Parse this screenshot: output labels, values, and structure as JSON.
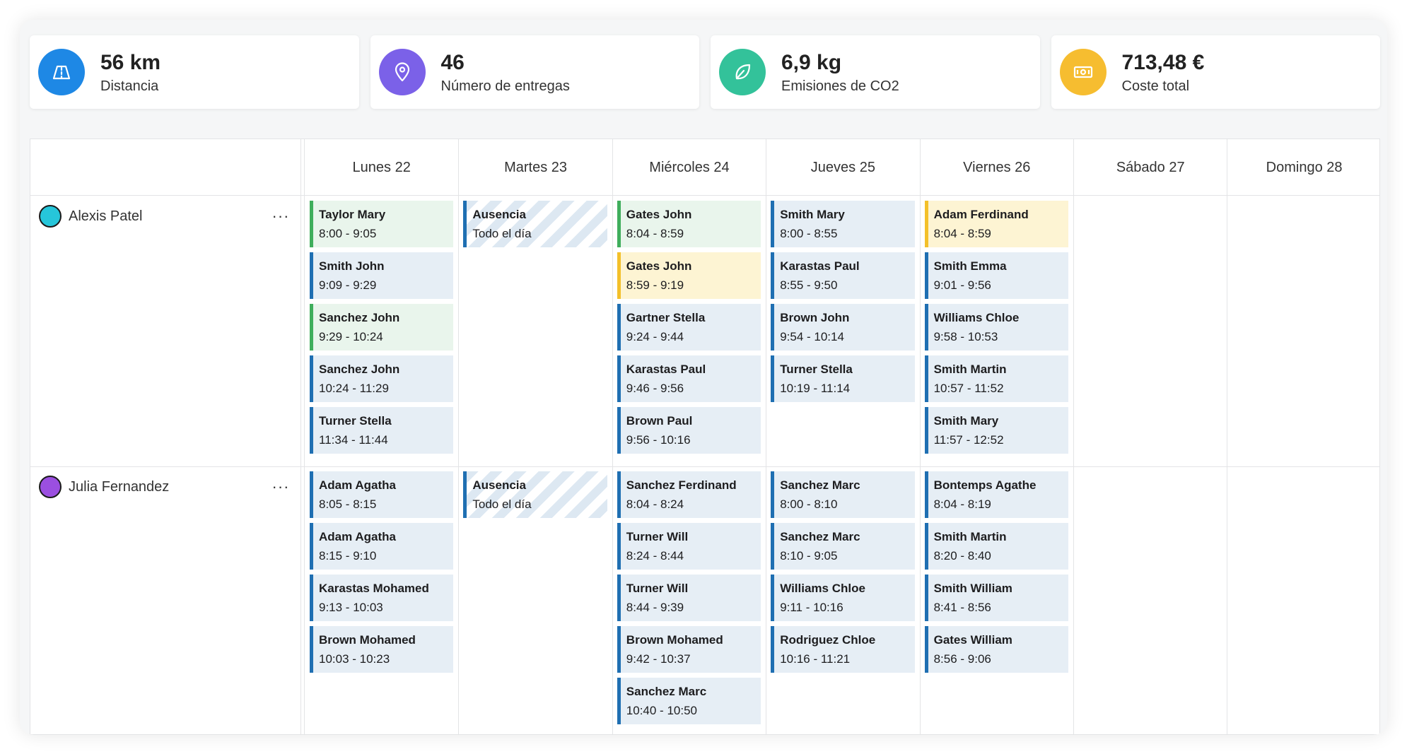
{
  "kpis": [
    {
      "value": "56 km",
      "label": "Distancia",
      "icon": "road-icon",
      "color": "#1e88e5"
    },
    {
      "value": "46",
      "label": "Número de entregas",
      "icon": "location-pin-icon",
      "color": "#7b61e8"
    },
    {
      "value": "6,9 kg",
      "label": "Emisiones de CO2",
      "icon": "leaf-icon",
      "color": "#33c29a"
    },
    {
      "value": "713,48 €",
      "label": "Coste total",
      "icon": "banknote-icon",
      "color": "#f6bd30"
    }
  ],
  "days": [
    "Lunes 22",
    "Martes 23",
    "Miércoles 24",
    "Jueves 25",
    "Viernes 26",
    "Sábado 27",
    "Domingo 28"
  ],
  "colors": {
    "blue": "#1f6fb2",
    "green": "#3fae5c",
    "yellow": "#f3c02a"
  },
  "people": [
    {
      "name": "Alexis Patel",
      "avatar_color": "#26c6da",
      "more": "···",
      "days": [
        [
          {
            "name": "Taylor Mary",
            "time": "8:00 - 9:05",
            "type": "green"
          },
          {
            "name": "Smith John",
            "time": "9:09 - 9:29",
            "type": "blue"
          },
          {
            "name": "Sanchez John",
            "time": "9:29 - 10:24",
            "type": "green"
          },
          {
            "name": "Sanchez John",
            "time": "10:24 - 11:29",
            "type": "blue"
          },
          {
            "name": "Turner Stella",
            "time": "11:34 - 11:44",
            "type": "blue"
          }
        ],
        [
          {
            "name": "Ausencia",
            "time": "Todo el día",
            "type": "absence"
          }
        ],
        [
          {
            "name": "Gates John",
            "time": "8:04 - 8:59",
            "type": "green"
          },
          {
            "name": "Gates John",
            "time": "8:59 - 9:19",
            "type": "yellow"
          },
          {
            "name": "Gartner Stella",
            "time": "9:24 - 9:44",
            "type": "blue"
          },
          {
            "name": "Karastas Paul",
            "time": "9:46 - 9:56",
            "type": "blue"
          },
          {
            "name": "Brown Paul",
            "time": "9:56 - 10:16",
            "type": "blue"
          }
        ],
        [
          {
            "name": "Smith Mary",
            "time": "8:00 - 8:55",
            "type": "blue"
          },
          {
            "name": "Karastas Paul",
            "time": "8:55 - 9:50",
            "type": "blue"
          },
          {
            "name": "Brown John",
            "time": "9:54 - 10:14",
            "type": "blue"
          },
          {
            "name": "Turner Stella",
            "time": "10:19 - 11:14",
            "type": "blue"
          }
        ],
        [
          {
            "name": "Adam Ferdinand",
            "time": "8:04 - 8:59",
            "type": "yellow"
          },
          {
            "name": "Smith Emma",
            "time": "9:01 - 9:56",
            "type": "blue"
          },
          {
            "name": "Williams Chloe",
            "time": "9:58 - 10:53",
            "type": "blue"
          },
          {
            "name": "Smith Martin",
            "time": "10:57 - 11:52",
            "type": "blue"
          },
          {
            "name": "Smith Mary",
            "time": "11:57 - 12:52",
            "type": "blue"
          }
        ],
        [],
        []
      ]
    },
    {
      "name": "Julia Fernandez",
      "avatar_color": "#9b4fe0",
      "more": "···",
      "days": [
        [
          {
            "name": "Adam Agatha",
            "time": "8:05 - 8:15",
            "type": "blue"
          },
          {
            "name": "Adam Agatha",
            "time": "8:15 - 9:10",
            "type": "blue"
          },
          {
            "name": "Karastas Mohamed",
            "time": "9:13 - 10:03",
            "type": "blue"
          },
          {
            "name": "Brown Mohamed",
            "time": "10:03 - 10:23",
            "type": "blue"
          }
        ],
        [
          {
            "name": "Ausencia",
            "time": "Todo el día",
            "type": "absence"
          }
        ],
        [
          {
            "name": "Sanchez Ferdinand",
            "time": "8:04 - 8:24",
            "type": "blue"
          },
          {
            "name": "Turner Will",
            "time": "8:24 - 8:44",
            "type": "blue"
          },
          {
            "name": "Turner Will",
            "time": "8:44 - 9:39",
            "type": "blue"
          },
          {
            "name": "Brown Mohamed",
            "time": "9:42 - 10:37",
            "type": "blue"
          },
          {
            "name": "Sanchez Marc",
            "time": "10:40 - 10:50",
            "type": "blue"
          }
        ],
        [
          {
            "name": "Sanchez Marc",
            "time": "8:00 - 8:10",
            "type": "blue"
          },
          {
            "name": "Sanchez Marc",
            "time": "8:10 - 9:05",
            "type": "blue"
          },
          {
            "name": "Williams Chloe",
            "time": "9:11 - 10:16",
            "type": "blue"
          },
          {
            "name": "Rodriguez Chloe",
            "time": "10:16 - 11:21",
            "type": "blue"
          }
        ],
        [
          {
            "name": "Bontemps Agathe",
            "time": "8:04 - 8:19",
            "type": "blue"
          },
          {
            "name": "Smith Martin",
            "time": "8:20 - 8:40",
            "type": "blue"
          },
          {
            "name": "Smith William",
            "time": "8:41 - 8:56",
            "type": "blue"
          },
          {
            "name": "Gates William",
            "time": "8:56 - 9:06",
            "type": "blue"
          }
        ],
        [],
        []
      ]
    }
  ]
}
